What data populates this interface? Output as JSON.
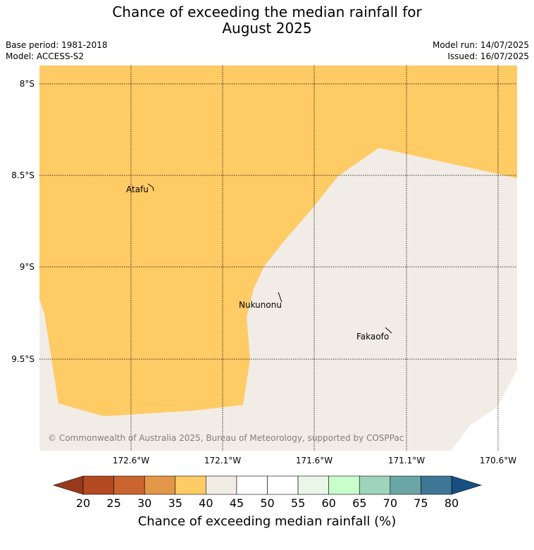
{
  "title": {
    "line1": "Chance of exceeding the median rainfall for",
    "line2": "August 2025"
  },
  "meta": {
    "base_period": "Base period: 1981-2018",
    "model": "Model: ACCESS-S2",
    "model_run": "Model run: 14/07/2025",
    "issued": "Issued: 16/07/2025"
  },
  "map": {
    "lat_labels": [
      "8°S",
      "8.5°S",
      "9°S",
      "9.5°S"
    ],
    "lon_labels": [
      "172.6°W",
      "172.1°W",
      "171.6°W",
      "171.1°W",
      "170.6°W"
    ],
    "places": [
      "Atafu",
      "Nukunonu",
      "Fakaofo"
    ],
    "copyright": "© Commonwealth of Australia 2025, Bureau of Meteorology, supported by COSPPac",
    "colors": {
      "zone_35_40": "#fecb65",
      "zone_40_45": "#f1ece6",
      "outside": "#ffffff"
    }
  },
  "colorbar": {
    "ticks": [
      "20",
      "25",
      "30",
      "35",
      "40",
      "45",
      "50",
      "55",
      "60",
      "65",
      "70",
      "75",
      "80"
    ],
    "colors": [
      "#b34a22",
      "#cb6530",
      "#e39749",
      "#fecb65",
      "#f1ece6",
      "#ffffff",
      "#ffffff",
      "#eaf6e9",
      "#c9ffcb",
      "#9ed3bc",
      "#6ba6a6",
      "#3e7696"
    ],
    "under_color": "#98391e",
    "over_color": "#184f82",
    "label": "Chance of exceeding median rainfall (%)"
  }
}
